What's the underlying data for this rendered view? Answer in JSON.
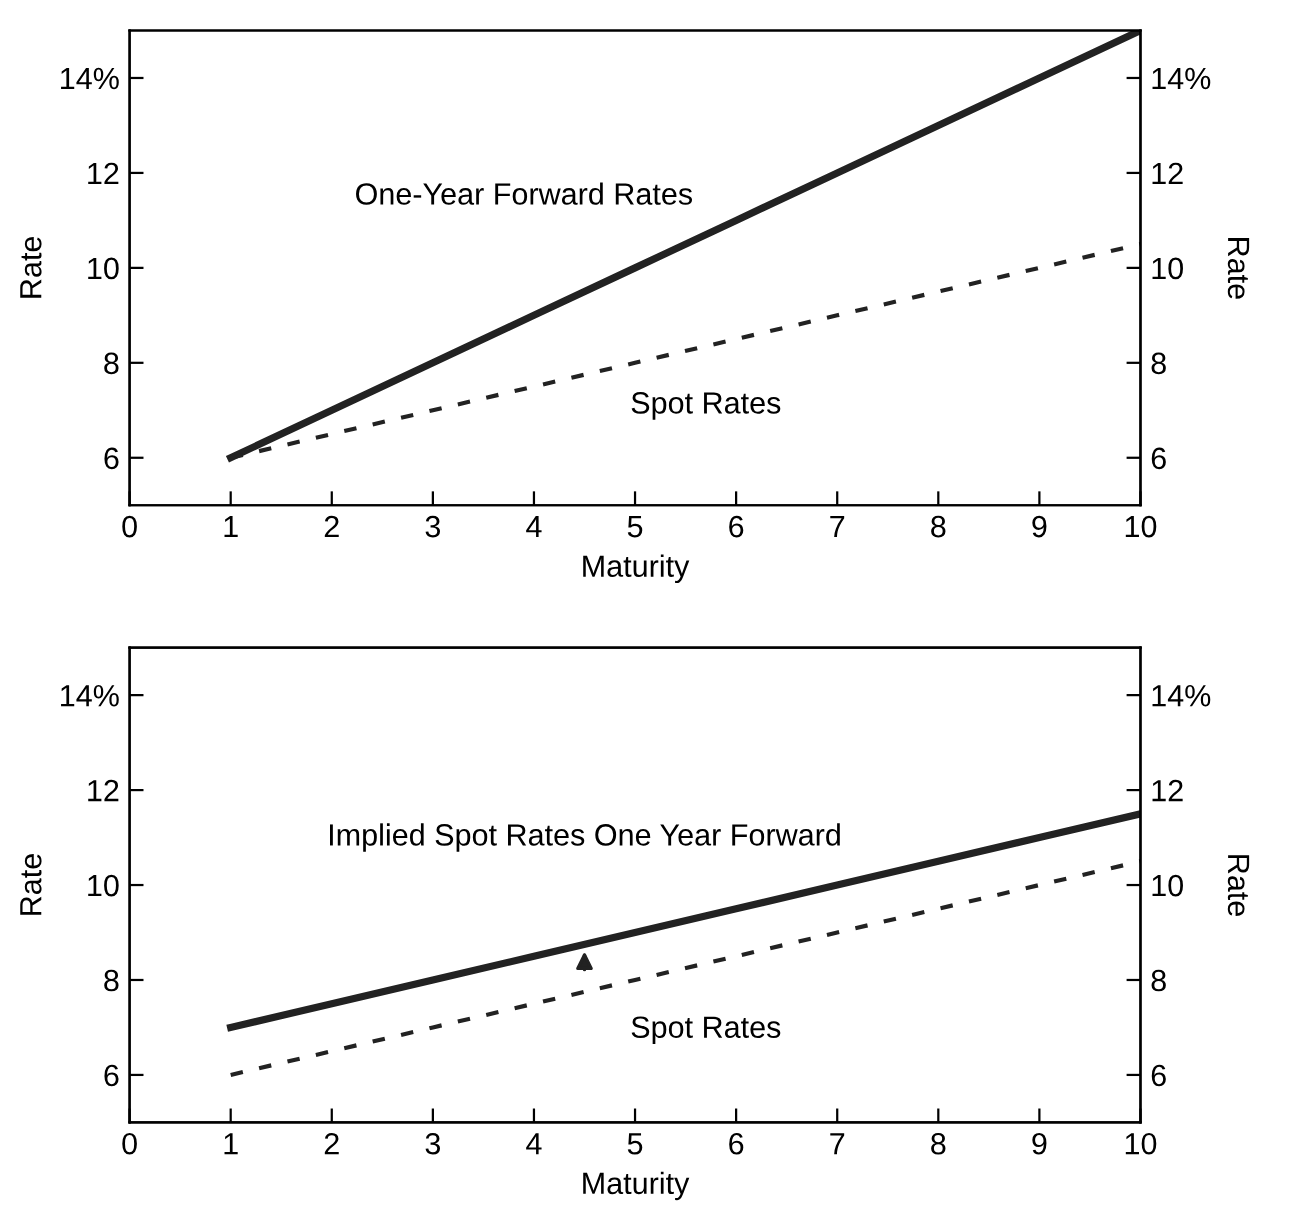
{
  "chart_data": [
    {
      "type": "line",
      "xlabel": "Maturity",
      "ylabel": "Rate",
      "y2label": "Rate",
      "x": [
        1,
        2,
        3,
        4,
        5,
        6,
        7,
        8,
        9,
        10
      ],
      "series": [
        {
          "color": "#222222",
          "values": [
            6,
            7,
            8,
            9,
            10,
            11,
            12,
            13,
            14,
            15
          ],
          "line_style": "solid"
        },
        {
          "color": "#222222",
          "values": [
            6,
            6.5,
            7,
            7.5,
            8,
            8.5,
            9,
            9.5,
            10,
            10.5
          ],
          "line_style": "dashed"
        }
      ],
      "xlim": [
        0,
        10
      ],
      "xticks": [
        0,
        1,
        2,
        3,
        4,
        5,
        6,
        7,
        8,
        9,
        10
      ],
      "ylim": [
        5,
        15
      ],
      "yticks": [
        6,
        8,
        10,
        12,
        {
          "value": 14,
          "label": "14%"
        }
      ],
      "y2lim": [
        5,
        15
      ],
      "y2ticks": [
        6,
        8,
        10,
        12,
        {
          "value": 14,
          "label": "14%"
        }
      ],
      "annotations": [
        "One-Year Forward Rates",
        "Spot Rates"
      ],
      "grid": false,
      "legend": false
    },
    {
      "type": "line",
      "xlabel": "Maturity",
      "ylabel": "Rate",
      "y2label": "Rate",
      "x": [
        1,
        2,
        3,
        4,
        5,
        6,
        7,
        8,
        9,
        10
      ],
      "series": [
        {
          "color": "#222222",
          "values": [
            7,
            7.5,
            8,
            8.5,
            9,
            9.5,
            10,
            10.5,
            11,
            11.5
          ],
          "line_style": "solid"
        },
        {
          "color": "#222222",
          "values": [
            6,
            6.5,
            7,
            7.5,
            8,
            8.5,
            9,
            9.5,
            10,
            10.5
          ],
          "line_style": "dashed"
        }
      ],
      "xlim": [
        0,
        10
      ],
      "xticks": [
        0,
        1,
        2,
        3,
        4,
        5,
        6,
        7,
        8,
        9,
        10
      ],
      "ylim": [
        5,
        15
      ],
      "yticks": [
        6,
        8,
        10,
        12,
        {
          "value": 14,
          "label": "14%"
        }
      ],
      "y2lim": [
        5,
        15
      ],
      "y2ticks": [
        6,
        8,
        10,
        12,
        {
          "value": 14,
          "label": "14%"
        }
      ],
      "annotations": [
        "Implied Spot Rates One Year Forward",
        "Spot Rates"
      ],
      "grid": false,
      "legend": false
    }
  ]
}
